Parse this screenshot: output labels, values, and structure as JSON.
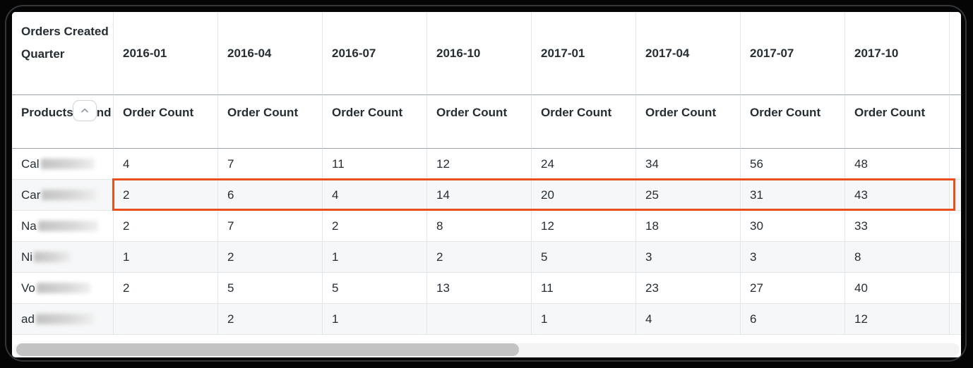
{
  "table": {
    "corner_header": "Orders Created Quarter",
    "row_dimension": {
      "label": "Products Brand",
      "collapse_icon": "chevron-up"
    },
    "measure_label": "Order Count",
    "columns": [
      "2016-01",
      "2016-04",
      "2016-07",
      "2016-10",
      "2017-01",
      "2017-04",
      "2017-07",
      "2017-10"
    ],
    "rows": [
      {
        "brand_prefix": "Cal",
        "redacted": true,
        "redacted_width": 76,
        "highlighted": false,
        "values": [
          "4",
          "7",
          "11",
          "12",
          "24",
          "34",
          "56",
          "48"
        ]
      },
      {
        "brand_prefix": "Car",
        "redacted": true,
        "redacted_width": 78,
        "highlighted": true,
        "values": [
          "2",
          "6",
          "4",
          "14",
          "20",
          "25",
          "31",
          "43"
        ]
      },
      {
        "brand_prefix": "Na",
        "redacted": true,
        "redacted_width": 85,
        "highlighted": false,
        "values": [
          "2",
          "7",
          "2",
          "8",
          "12",
          "18",
          "30",
          "33"
        ]
      },
      {
        "brand_prefix": "Ni",
        "redacted": true,
        "redacted_width": 52,
        "highlighted": false,
        "values": [
          "1",
          "2",
          "1",
          "2",
          "5",
          "3",
          "3",
          "8"
        ]
      },
      {
        "brand_prefix": "Vo",
        "redacted": true,
        "redacted_width": 76,
        "highlighted": false,
        "values": [
          "2",
          "5",
          "5",
          "13",
          "11",
          "23",
          "27",
          "40"
        ]
      },
      {
        "brand_prefix": "ad",
        "redacted": true,
        "redacted_width": 82,
        "highlighted": false,
        "values": [
          "",
          "2",
          "1",
          "",
          "1",
          "4",
          "6",
          "12"
        ]
      }
    ],
    "colors": {
      "highlight_border": "#E8501F",
      "header_text": "#262D33",
      "grid_line": "#E3E6E8",
      "header_line": "#9BA2A9",
      "row_alt_bg": "#F6F7F8"
    }
  },
  "scrollbar": {
    "orientation": "horizontal",
    "thumb_color": "#C3C3C3"
  }
}
